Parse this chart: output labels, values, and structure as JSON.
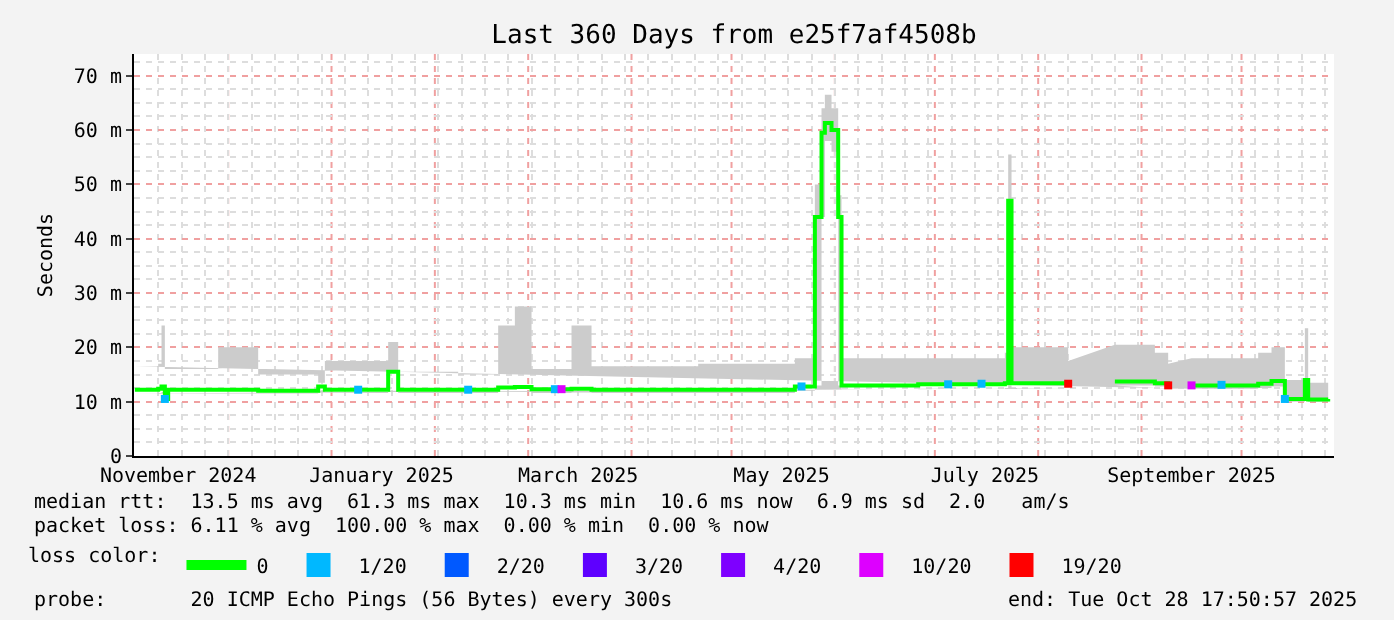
{
  "chart_data": {
    "type": "step",
    "title": "Last 360 Days from e25f7af4508b",
    "ylabel": "Seconds",
    "legend_title": "loss color:",
    "xlim": [
      "2024-11-02T17:50",
      "2025-10-28T17:50"
    ],
    "xticks": [
      {
        "value": "2024-11-16",
        "label": "November 2024"
      },
      {
        "value": "2024-12-01",
        "label": null
      },
      {
        "value": "2025-01-01",
        "label": null
      },
      {
        "value": "2025-01-16",
        "label": "January 2025"
      },
      {
        "value": "2025-02-01",
        "label": null
      },
      {
        "value": "2025-03-01",
        "label": null
      },
      {
        "value": "2025-03-16",
        "label": "March 2025"
      },
      {
        "value": "2025-04-01",
        "label": null
      },
      {
        "value": "2025-05-01",
        "label": null
      },
      {
        "value": "2025-05-16",
        "label": "May 2025"
      },
      {
        "value": "2025-06-01",
        "label": null
      },
      {
        "value": "2025-07-01",
        "label": null
      },
      {
        "value": "2025-07-16",
        "label": "July 2025"
      },
      {
        "value": "2025-08-01",
        "label": null
      },
      {
        "value": "2025-09-01",
        "label": null
      },
      {
        "value": "2025-09-16",
        "label": "September 2025"
      },
      {
        "value": "2025-10-01",
        "label": null
      }
    ],
    "ylim": [
      0,
      74
    ],
    "yticks": [
      0,
      {
        "value": 10,
        "label": "10 m"
      },
      {
        "value": 20,
        "label": "20 m"
      },
      {
        "value": 30,
        "label": "30 m"
      },
      {
        "value": 40,
        "label": "40 m"
      },
      {
        "value": 50,
        "label": "50 m"
      },
      {
        "value": 60,
        "label": "60 m"
      },
      {
        "value": 70,
        "label": "70 m"
      }
    ],
    "grid": true,
    "legend": "bottom left",
    "series": [
      {
        "name": "0",
        "color": "#00ff00",
        "line_style": "solid",
        "x": [
          "2024-11-03",
          "2024-11-10",
          "2024-11-11",
          "2024-11-12",
          "2024-11-13",
          "2024-11-28",
          "2024-12-10",
          "2024-12-28",
          "2024-12-30",
          "2025-01-18",
          "2025-01-21",
          "2025-02-08",
          "2025-02-20",
          "2025-02-25",
          "2025-03-02",
          "2025-03-14",
          "2025-03-20",
          "2025-04-21",
          "2025-05-20",
          "2025-05-26",
          "2025-05-28",
          "2025-05-29",
          "2025-05-31",
          "2025-06-02",
          "2025-06-03",
          "2025-06-26",
          "2025-07-22",
          "2025-07-23",
          "2025-07-24",
          "2025-08-10",
          "2025-08-15",
          "2025-08-24",
          "2025-09-05",
          "2025-09-09",
          "2025-09-12",
          "2025-09-16",
          "2025-10-06",
          "2025-10-10",
          "2025-10-14",
          "2025-10-20",
          "2025-10-21",
          "2025-10-27"
        ],
        "values": [
          12.2,
          12.4,
          12.8,
          10.5,
          12.2,
          12.2,
          12.0,
          12.8,
          12.2,
          15.5,
          12.2,
          12.2,
          12.6,
          12.7,
          12.3,
          12.4,
          12.2,
          12.2,
          12.8,
          44,
          59.5,
          61.3,
          60,
          44,
          13.0,
          13.2,
          13.4,
          47,
          13.4,
          13.3,
          null,
          13.7,
          13.4,
          13.0,
          null,
          13.0,
          13.3,
          13.8,
          10.5,
          14.0,
          10.4,
          10.5
        ],
        "lower": [
          11.5,
          11.6,
          11.8,
          10.0,
          11.5,
          11.5,
          11.5,
          12.0,
          11.6,
          12.0,
          11.6,
          11.6,
          11.8,
          11.8,
          11.6,
          11.7,
          11.6,
          11.6,
          12.0,
          13,
          44,
          58,
          56,
          13,
          12.3,
          12.4,
          12.5,
          13,
          12.5,
          12.5,
          null,
          13.0,
          12.8,
          12.4,
          null,
          12.4,
          12.5,
          12.8,
          10.0,
          10.2,
          10.0,
          10.0
        ],
        "upper": [
          16.5,
          17,
          24,
          16,
          16,
          20,
          15,
          13.5,
          17.5,
          21,
          15.5,
          15,
          24,
          27.5,
          16,
          24,
          16.5,
          17,
          18,
          50,
          64,
          66.5,
          64,
          48,
          18,
          18,
          19,
          55.5,
          20,
          17.5,
          null,
          20.5,
          19,
          17,
          null,
          18,
          19,
          20,
          14,
          23.5,
          13.5,
          13.5
        ]
      },
      {
        "name": "1/20",
        "type": "scatter",
        "marker": "square",
        "color": "#00b8ff",
        "x": [
          "2024-11-12",
          "2025-01-09",
          "2025-02-11",
          "2025-03-09",
          "2025-05-22",
          "2025-07-05",
          "2025-07-15",
          "2025-09-25",
          "2025-10-14"
        ],
        "values": [
          10.5,
          12.2,
          12.2,
          12.3,
          12.8,
          13.2,
          13.3,
          13.1,
          10.5
        ]
      },
      {
        "name": "2/20",
        "type": "scatter",
        "marker": "square",
        "color": "#0059ff",
        "values": [
          null
        ]
      },
      {
        "name": "3/20",
        "type": "scatter",
        "marker": "square",
        "color": "#5e00ff",
        "values": [
          null
        ]
      },
      {
        "name": "4/20",
        "type": "scatter",
        "marker": "square",
        "color": "#7e00ff",
        "values": [
          null
        ]
      },
      {
        "name": "10/20",
        "type": "scatter",
        "marker": "square",
        "color": "#dd00ff",
        "x": [
          "2025-03-11",
          "2025-09-16"
        ],
        "values": [
          12.3,
          13.0
        ]
      },
      {
        "name": "19/20",
        "type": "scatter",
        "marker": "square",
        "color": "#ff0000",
        "x": [
          "2025-08-10",
          "2025-09-09"
        ],
        "values": [
          13.3,
          13.0
        ]
      }
    ],
    "annotations": [
      "median rtt:  13.5 ms avg  61.3 ms max  10.3 ms min  10.6 ms now  6.9 ms sd  2.0   am/s",
      "packet loss: 6.11 % avg  100.00 % max  0.00 % min  0.00 % now",
      "probe:       20 ICMP Echo Pings (56 Bytes) every 300s",
      "end: Tue Oct 28 17:50:57 2025"
    ]
  }
}
